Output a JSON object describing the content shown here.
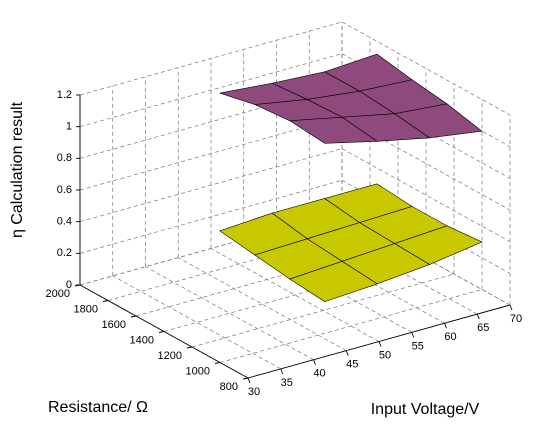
{
  "chart_data": {
    "type": "surface3d",
    "xlabel": "Input Voltage/V",
    "ylabel": "Resistance/ Ω",
    "zlabel": "η Calculation result",
    "xlim": [
      30,
      70
    ],
    "ylim": [
      800,
      2000
    ],
    "zlim": [
      0,
      1.2
    ],
    "xticks": [
      30,
      35,
      40,
      45,
      50,
      55,
      60,
      65,
      70
    ],
    "yticks": [
      800,
      1000,
      1200,
      1400,
      1600,
      1800,
      2000
    ],
    "zticks": [
      0,
      0.2,
      0.4,
      0.6,
      0.8,
      1,
      1.2
    ],
    "grid": true,
    "x": [
      46,
      54,
      62,
      70
    ],
    "y": [
      1000,
      1250,
      1500,
      1750
    ],
    "series": [
      {
        "color": "#c8c800",
        "z": [
          [
            0.2,
            0.22,
            0.25,
            0.3
          ],
          [
            0.22,
            0.24,
            0.26,
            0.28
          ],
          [
            0.25,
            0.26,
            0.27,
            0.28
          ],
          [
            0.28,
            0.3,
            0.3,
            0.3
          ]
        ]
      },
      {
        "color": "#8e4a7c",
        "z": [
          [
            1.2,
            1.12,
            1.05,
            1.0
          ],
          [
            1.22,
            1.15,
            1.08,
            1.05
          ],
          [
            1.2,
            1.14,
            1.1,
            1.08
          ],
          [
            1.15,
            1.12,
            1.1,
            1.12
          ]
        ]
      }
    ]
  }
}
